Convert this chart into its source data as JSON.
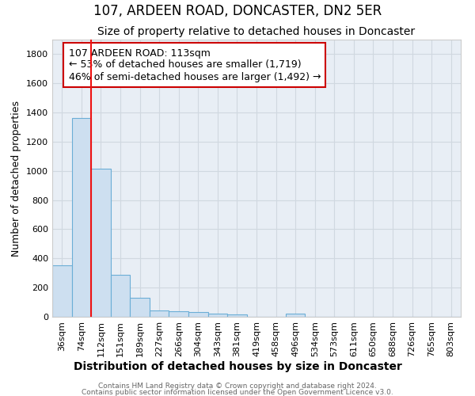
{
  "title": "107, ARDEEN ROAD, DONCASTER, DN2 5ER",
  "subtitle": "Size of property relative to detached houses in Doncaster",
  "xlabel": "Distribution of detached houses by size in Doncaster",
  "ylabel": "Number of detached properties",
  "footer_line1": "Contains HM Land Registry data © Crown copyright and database right 2024.",
  "footer_line2": "Contains public sector information licensed under the Open Government Licence v3.0.",
  "bin_labels": [
    "36sqm",
    "74sqm",
    "112sqm",
    "151sqm",
    "189sqm",
    "227sqm",
    "266sqm",
    "304sqm",
    "343sqm",
    "381sqm",
    "419sqm",
    "458sqm",
    "496sqm",
    "534sqm",
    "573sqm",
    "611sqm",
    "650sqm",
    "688sqm",
    "726sqm",
    "765sqm",
    "803sqm"
  ],
  "bar_values": [
    355,
    1360,
    1015,
    290,
    130,
    43,
    37,
    32,
    20,
    15,
    0,
    0,
    20,
    0,
    0,
    0,
    0,
    0,
    0,
    0,
    0
  ],
  "bar_color": "#cddff0",
  "bar_edge_color": "#6baed6",
  "bar_linewidth": 0.8,
  "vline_x": 1.5,
  "vline_color": "#ee1111",
  "vline_linewidth": 1.5,
  "annotation_text": "107 ARDEEN ROAD: 113sqm\n← 53% of detached houses are smaller (1,719)\n46% of semi-detached houses are larger (1,492) →",
  "annotation_box_color": "white",
  "annotation_box_edge": "#cc0000",
  "annotation_fontsize": 9,
  "ylim": [
    0,
    1900
  ],
  "yticks": [
    0,
    200,
    400,
    600,
    800,
    1000,
    1200,
    1400,
    1600,
    1800
  ],
  "plot_bg_color": "#e8eef5",
  "title_fontsize": 12,
  "subtitle_fontsize": 10,
  "xlabel_fontsize": 10,
  "ylabel_fontsize": 9,
  "tick_fontsize": 8,
  "grid_color": "#d0d8e0",
  "grid_linewidth": 0.8
}
